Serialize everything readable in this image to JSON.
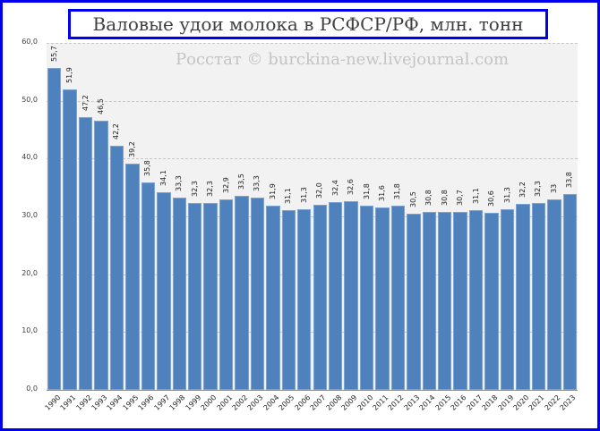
{
  "chart_data": {
    "type": "bar",
    "title": "Валовые удои молока в РСФСР/РФ, млн. тонн",
    "subtitle": "Росстат © burckina-new.livejournal.com",
    "xlabel": "",
    "ylabel": "",
    "ylim": [
      0,
      60
    ],
    "yticks": [
      "0,0",
      "10,0",
      "20,0",
      "30,0",
      "40,0",
      "50,0",
      "60,0"
    ],
    "grid": true,
    "legend": null,
    "categories": [
      "1990",
      "1991",
      "1992",
      "1993",
      "1994",
      "1995",
      "1996",
      "1997",
      "1998",
      "1999",
      "2000",
      "2001",
      "2002",
      "2003",
      "2004",
      "2005",
      "2006",
      "2007",
      "2008",
      "2009",
      "2010",
      "2011",
      "2012",
      "2013",
      "2014",
      "2015",
      "2016",
      "2017",
      "2018",
      "2019",
      "2020",
      "2021",
      "2022",
      "2023"
    ],
    "values": [
      55.7,
      51.9,
      47.2,
      46.5,
      42.2,
      39.2,
      35.8,
      34.1,
      33.3,
      32.3,
      32.3,
      32.9,
      33.5,
      33.3,
      31.9,
      31.1,
      31.3,
      32.0,
      32.4,
      32.6,
      31.8,
      31.6,
      31.8,
      30.5,
      30.8,
      30.8,
      30.7,
      31.1,
      30.6,
      31.3,
      32.2,
      32.3,
      33.0,
      33.8
    ],
    "data_labels": [
      "55,7",
      "51,9",
      "47,2",
      "46,5",
      "42,2",
      "39,2",
      "35,8",
      "34,1",
      "33,3",
      "32,3",
      "32,3",
      "32,9",
      "33,5",
      "33,3",
      "31,9",
      "31,1",
      "31,3",
      "32,0",
      "32,4",
      "32,6",
      "31,8",
      "31,6",
      "31,8",
      "30,5",
      "30,8",
      "30,8",
      "30,7",
      "31,1",
      "30,6",
      "31,3",
      "32,2",
      "32,3",
      "33",
      "33,8"
    ],
    "colors": {
      "bar": "#4f81bd",
      "frame": "#0000ee",
      "plot_bg": "#f2f2f2"
    }
  }
}
